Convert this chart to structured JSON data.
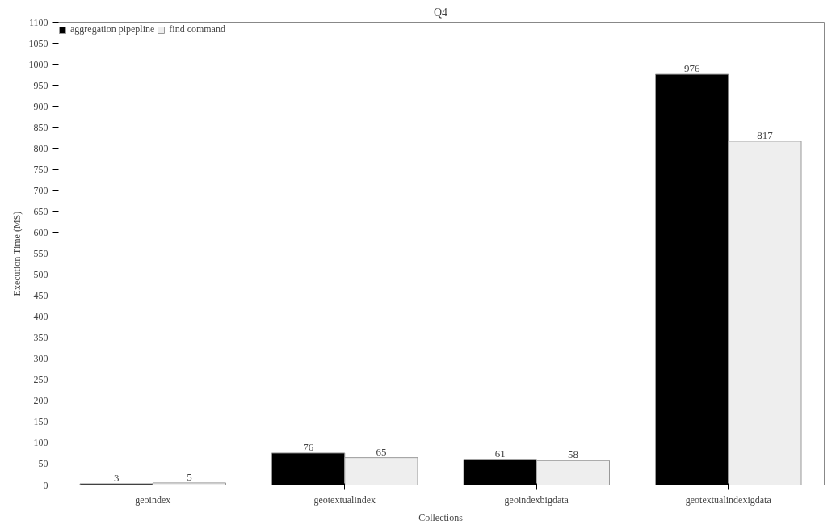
{
  "chart_data": {
    "type": "bar",
    "title": "Q4",
    "xlabel": "Collections",
    "ylabel": "Execution Time (MS)",
    "categories": [
      "geoindex",
      "geotextualindex",
      "geoindexbigdata",
      "geotextualindexigdata"
    ],
    "series": [
      {
        "name": "aggregation pipepline",
        "color": "#000000",
        "values": [
          3,
          76,
          61,
          976
        ]
      },
      {
        "name": "find command",
        "color": "#eeeeee",
        "values": [
          5,
          65,
          58,
          817
        ]
      }
    ],
    "ylim": [
      0,
      1100
    ],
    "yticks": [
      0,
      50,
      100,
      150,
      200,
      250,
      300,
      350,
      400,
      450,
      500,
      550,
      600,
      650,
      700,
      750,
      800,
      850,
      900,
      950,
      1000,
      1050,
      1100
    ],
    "grid": false,
    "legend": "top left",
    "data_labels": true
  }
}
